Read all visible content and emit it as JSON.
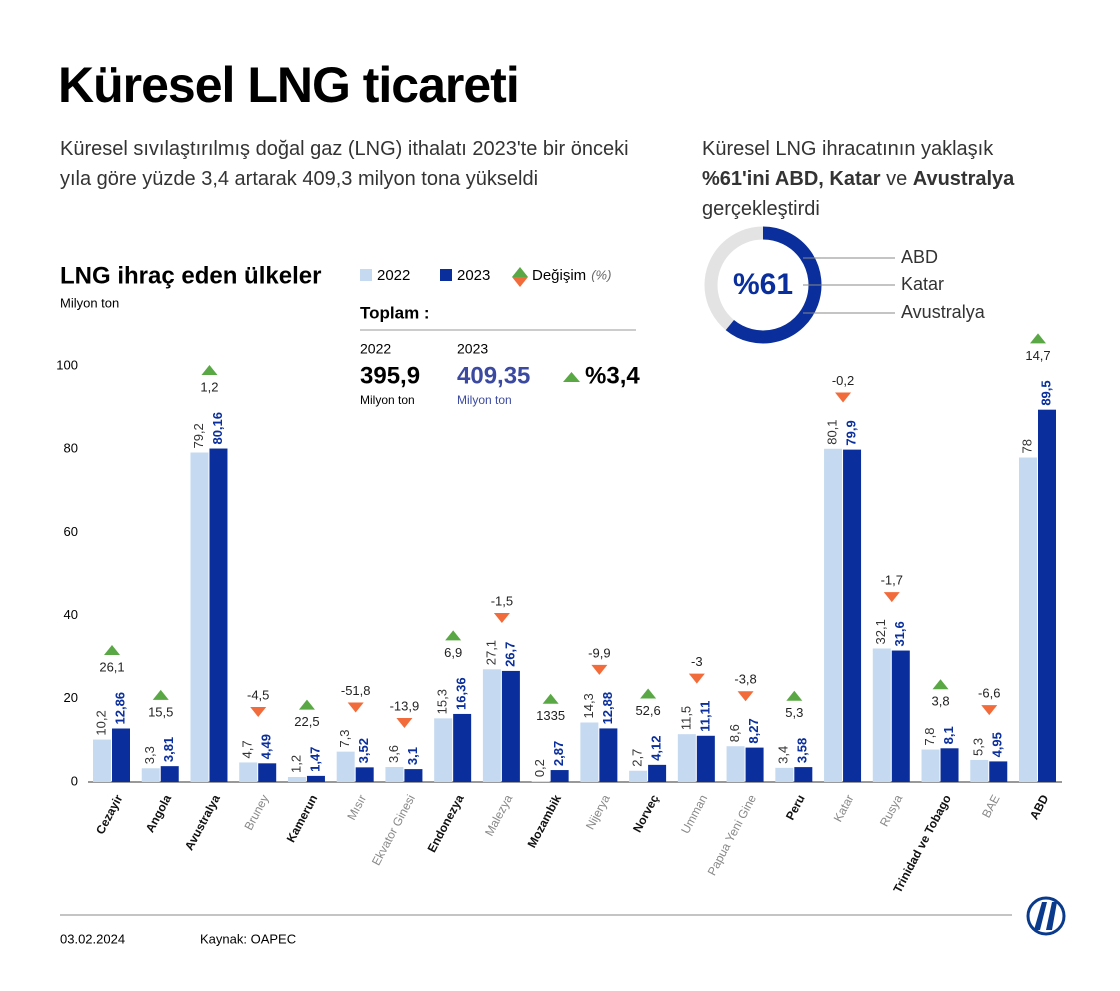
{
  "header": {
    "title": "Küresel LNG ticareti",
    "subtitle": "Küresel sıvılaştırılmış doğal gaz (LNG) ithalatı 2023'te bir önceki yıla göre yüzde 3,4 artarak 409,3 milyon tona yükseldi"
  },
  "totals": {
    "title": "Toplam :",
    "items": [
      {
        "year": "2022",
        "value": "395,9",
        "unit": "Milyon ton"
      },
      {
        "year": "2023",
        "value": "409,35",
        "unit": "Milyon ton"
      }
    ],
    "change": "%3,4"
  },
  "footer": {
    "date": "03.02.2024",
    "source": "Kaynak: OAPEC"
  },
  "chart_data": [
    {
      "type": "bar",
      "title": "LNG ihraç eden ülkeler",
      "y_label": "Milyon ton",
      "categories": [
        "Cezayir",
        "Angola",
        "Avustralya",
        "Bruney",
        "Kamerun",
        "Mısır",
        "Ekvator Ginesi",
        "Endonezya",
        "Malezya",
        "Mozambik",
        "Nijerya",
        "Norveç",
        "Umman",
        "Papua Yeni Gine",
        "Peru",
        "Katar",
        "Rusya",
        "Trinidad ve Tobago",
        "BAE",
        "ABD"
      ],
      "category_colors": [
        "#111",
        "#111",
        "#111",
        "#888",
        "#111",
        "#888",
        "#888",
        "#111",
        "#888",
        "#111",
        "#888",
        "#111",
        "#888",
        "#888",
        "#111",
        "#888",
        "#888",
        "#111",
        "#888",
        "#111"
      ],
      "series": [
        {
          "name": "2022",
          "color": "#c5daf0",
          "values": [
            10.2,
            3.3,
            79.2,
            4.7,
            1.2,
            7.3,
            3.6,
            15.3,
            27.1,
            0.2,
            14.3,
            2.7,
            11.5,
            8.6,
            3.4,
            80.1,
            32.1,
            7.8,
            5.3,
            78
          ],
          "value_labels": [
            "10,2",
            "3,3",
            "79,2",
            "4,7",
            "1,2",
            "7,3",
            "3,6",
            "15,3",
            "27,1",
            "0,2",
            "14,3",
            "2,7",
            "11,5",
            "8,6",
            "3,4",
            "80,1",
            "32,1",
            "7,8",
            "5,3",
            "78"
          ]
        },
        {
          "name": "2023",
          "color": "#0a2f9c",
          "values": [
            12.86,
            3.81,
            80.16,
            4.49,
            1.47,
            3.52,
            3.1,
            16.36,
            26.7,
            2.87,
            12.88,
            4.12,
            11.11,
            8.27,
            3.58,
            79.9,
            31.6,
            8.1,
            4.95,
            89.5
          ],
          "value_labels": [
            "12,86",
            "3,81",
            "80,16",
            "4,49",
            "1,47",
            "3,52",
            "3,1",
            "16,36",
            "26,7",
            "2,87",
            "12,88",
            "4,12",
            "11,11",
            "8,27",
            "3,58",
            "79,9",
            "31,6",
            "8,1",
            "4,95",
            "89,5"
          ]
        }
      ],
      "change": {
        "name": "Değişim",
        "unit": "(%)",
        "up_color": "#5aa845",
        "down_color": "#f26b3a",
        "values": [
          26.1,
          15.5,
          1.2,
          -4.5,
          22.5,
          -51.8,
          -13.9,
          6.9,
          -1.5,
          1335,
          -9.9,
          52.6,
          -3,
          -3.8,
          5.3,
          -0.2,
          -1.7,
          3.8,
          -6.6,
          14.7
        ],
        "value_labels": [
          "26,1",
          "15,5",
          "1,2",
          "-4,5",
          "22,5",
          "-51,8",
          "-13,9",
          "6,9",
          "-1,5",
          "1335",
          "-9,9",
          "52,6",
          "-3",
          "-3,8",
          "5,3",
          "-0,2",
          "-1,7",
          "3,8",
          "-6,6",
          "14,7"
        ]
      },
      "ylim": [
        0,
        100
      ],
      "yticks": [
        0,
        20,
        40,
        60,
        80,
        100
      ],
      "grid": false
    },
    {
      "type": "donut",
      "text": [
        "Küresel LNG ihracatının yaklaşık",
        "%61'ini ABD, Katar",
        "ve",
        "Avustralya",
        "gerçekleştirdi"
      ],
      "value": 61,
      "label": "%61",
      "color": "#0a2f9c",
      "rest_color": "#e3e3e3",
      "labels": [
        "ABD",
        "Katar",
        "Avustralya"
      ]
    }
  ]
}
